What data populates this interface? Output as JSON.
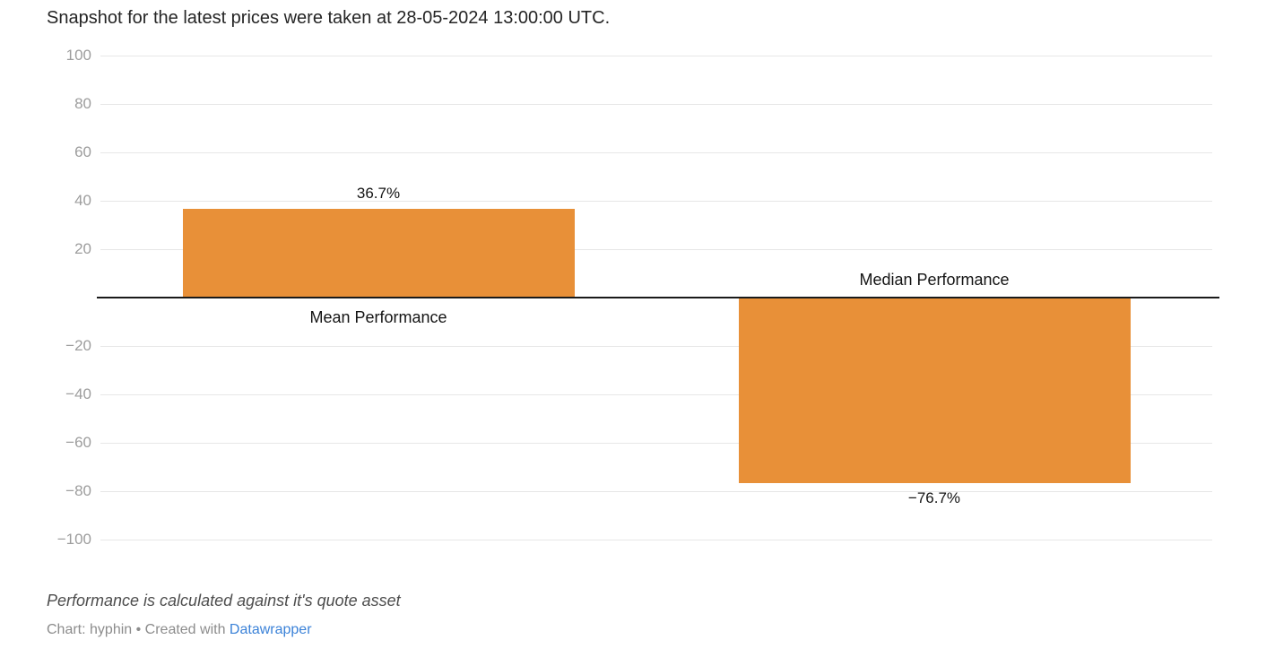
{
  "header": {
    "title": "Snapshot for the latest prices were taken at 28-05-2024 13:00:00 UTC."
  },
  "chart_data": {
    "type": "bar",
    "categories": [
      "Mean Performance",
      "Median Performance"
    ],
    "values": [
      36.7,
      -76.7
    ],
    "value_labels": [
      "36.7%",
      "−76.7%"
    ],
    "title": "Snapshot for the latest prices were taken at 28-05-2024 13:00:00 UTC.",
    "xlabel": "",
    "ylabel": "",
    "ylim": [
      -100,
      100
    ],
    "ytick_step": 20,
    "ytick_labels": [
      "100",
      "80",
      "60",
      "40",
      "20",
      "−20",
      "−40",
      "−60",
      "−80",
      "−100"
    ],
    "grid": true,
    "legend": "none",
    "bar_color": "#e89038"
  },
  "footer": {
    "note": "Performance is calculated against it's quote asset",
    "attribution_prefix": "Chart: hyphin • Created with ",
    "attribution_link": "Datawrapper"
  },
  "colors": {
    "bar": "#e89038",
    "gridline": "#e7e7e7",
    "zero_line": "#1a1a1a",
    "tick_label": "#9d9d9d",
    "link_blue": "#3b82d8"
  }
}
